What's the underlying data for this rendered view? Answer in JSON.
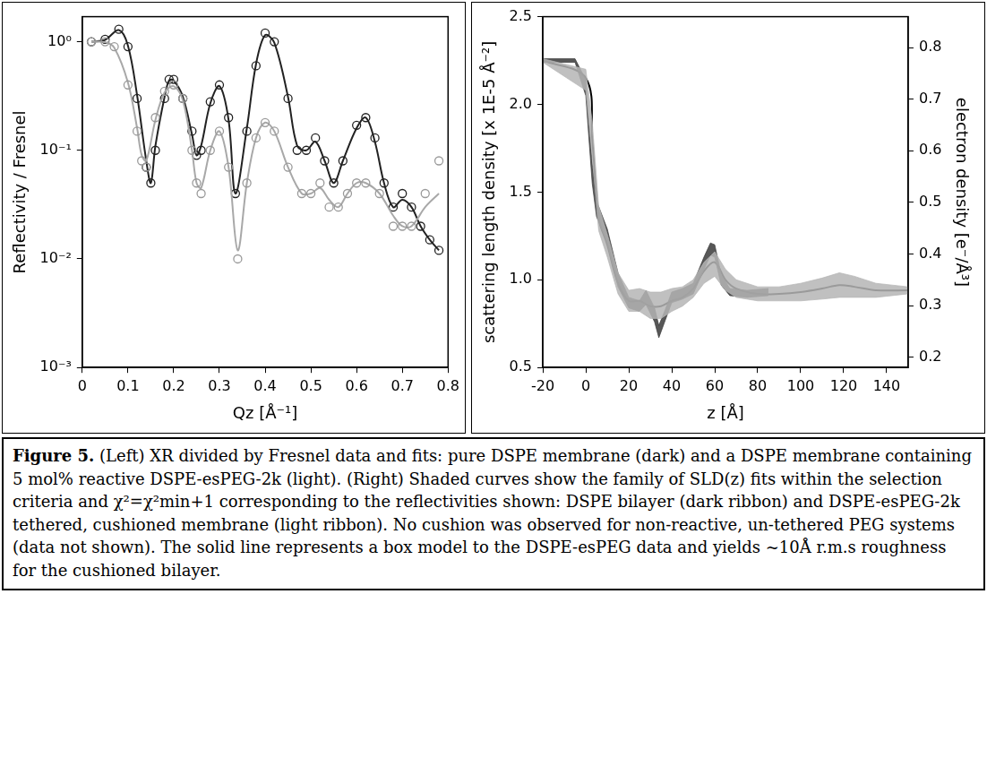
{
  "chart_data": [
    {
      "type": "scatter",
      "xlabel": "Qz [Å⁻¹]",
      "ylabel": "Reflectivity / Fresnel",
      "log": "y",
      "grid": false,
      "xlim": [
        0,
        0.8
      ],
      "xticks": [
        0,
        0.1,
        0.2,
        0.3,
        0.4,
        0.5,
        0.6,
        0.7,
        0.8
      ],
      "ylim": [
        0.001,
        1.7
      ],
      "yticks": [
        {
          "value": 0.001,
          "label": "10⁻³"
        },
        {
          "value": 0.01,
          "label": "10⁻²"
        },
        {
          "value": 0.1,
          "label": "10⁻¹"
        },
        {
          "value": 1,
          "label": "10⁰"
        }
      ],
      "series": [
        {
          "type": "scatter",
          "marker": "circle",
          "color": "#9a9a9a",
          "x": [
            0.02,
            0.05,
            0.07,
            0.1,
            0.12,
            0.13,
            0.14,
            0.16,
            0.18,
            0.2,
            0.22,
            0.24,
            0.25,
            0.26,
            0.28,
            0.3,
            0.32,
            0.34,
            0.36,
            0.38,
            0.4,
            0.42,
            0.45,
            0.48,
            0.5,
            0.52,
            0.54,
            0.56,
            0.58,
            0.6,
            0.62,
            0.65,
            0.68,
            0.7,
            0.72,
            0.75,
            0.78
          ],
          "values": [
            1.0,
            1.0,
            0.9,
            0.4,
            0.15,
            0.08,
            0.07,
            0.2,
            0.35,
            0.4,
            0.3,
            0.1,
            0.05,
            0.04,
            0.1,
            0.15,
            0.07,
            0.01,
            0.05,
            0.13,
            0.18,
            0.15,
            0.07,
            0.04,
            0.04,
            0.05,
            0.03,
            0.03,
            0.04,
            0.05,
            0.05,
            0.04,
            0.02,
            0.02,
            0.02,
            0.04,
            0.08
          ]
        },
        {
          "type": "line",
          "line_style": "solid",
          "color": "#a8a8a8",
          "x": [
            0.02,
            0.05,
            0.07,
            0.1,
            0.12,
            0.13,
            0.14,
            0.16,
            0.18,
            0.2,
            0.22,
            0.24,
            0.25,
            0.26,
            0.28,
            0.3,
            0.32,
            0.34,
            0.36,
            0.38,
            0.4,
            0.42,
            0.45,
            0.48,
            0.5,
            0.52,
            0.54,
            0.56,
            0.58,
            0.6,
            0.62,
            0.65,
            0.68,
            0.7,
            0.72,
            0.75,
            0.78
          ],
          "values": [
            1.0,
            0.99,
            0.88,
            0.42,
            0.16,
            0.09,
            0.08,
            0.19,
            0.34,
            0.39,
            0.29,
            0.1,
            0.05,
            0.045,
            0.1,
            0.15,
            0.07,
            0.012,
            0.05,
            0.13,
            0.18,
            0.15,
            0.07,
            0.04,
            0.04,
            0.045,
            0.035,
            0.03,
            0.04,
            0.05,
            0.05,
            0.04,
            0.025,
            0.02,
            0.02,
            0.03,
            0.04
          ]
        },
        {
          "type": "scatter",
          "marker": "circle",
          "color": "#222222",
          "x": [
            0.02,
            0.05,
            0.08,
            0.1,
            0.12,
            0.14,
            0.15,
            0.16,
            0.18,
            0.19,
            0.2,
            0.22,
            0.24,
            0.25,
            0.26,
            0.28,
            0.3,
            0.32,
            0.335,
            0.36,
            0.38,
            0.4,
            0.42,
            0.45,
            0.47,
            0.49,
            0.51,
            0.53,
            0.55,
            0.57,
            0.6,
            0.62,
            0.64,
            0.66,
            0.68,
            0.7,
            0.72,
            0.74,
            0.76,
            0.78
          ],
          "values": [
            1.0,
            1.05,
            1.3,
            0.9,
            0.3,
            0.07,
            0.05,
            0.1,
            0.3,
            0.45,
            0.45,
            0.3,
            0.15,
            0.09,
            0.1,
            0.28,
            0.4,
            0.2,
            0.04,
            0.15,
            0.6,
            1.2,
            1.0,
            0.3,
            0.1,
            0.1,
            0.13,
            0.08,
            0.05,
            0.08,
            0.17,
            0.2,
            0.13,
            0.05,
            0.03,
            0.04,
            0.03,
            0.02,
            0.015,
            0.012
          ]
        },
        {
          "type": "line",
          "line_style": "solid",
          "color": "#222222",
          "x": [
            0.02,
            0.05,
            0.08,
            0.1,
            0.12,
            0.14,
            0.15,
            0.16,
            0.18,
            0.19,
            0.2,
            0.22,
            0.24,
            0.25,
            0.26,
            0.28,
            0.3,
            0.32,
            0.335,
            0.36,
            0.38,
            0.4,
            0.42,
            0.45,
            0.47,
            0.49,
            0.51,
            0.53,
            0.55,
            0.57,
            0.6,
            0.62,
            0.64,
            0.66,
            0.68,
            0.7,
            0.72,
            0.74,
            0.76,
            0.78
          ],
          "values": [
            1.0,
            1.04,
            1.28,
            0.92,
            0.32,
            0.08,
            0.05,
            0.11,
            0.31,
            0.44,
            0.44,
            0.31,
            0.14,
            0.09,
            0.11,
            0.27,
            0.39,
            0.19,
            0.04,
            0.16,
            0.62,
            1.15,
            0.98,
            0.31,
            0.11,
            0.1,
            0.12,
            0.08,
            0.05,
            0.08,
            0.16,
            0.2,
            0.12,
            0.05,
            0.03,
            0.035,
            0.03,
            0.02,
            0.015,
            0.012
          ]
        }
      ]
    },
    {
      "type": "line",
      "xlabel": "z [Å]",
      "ylabel": "scattering length density [x 1E-5 Å⁻²]",
      "y2label": "electron density [e⁻/Å³]",
      "grid": false,
      "xlim": [
        -20,
        150
      ],
      "xticks": [
        -20,
        0,
        20,
        40,
        60,
        80,
        100,
        120,
        140
      ],
      "ylim": [
        0.5,
        2.5
      ],
      "yticks": [
        0.5,
        {
          "value": 1,
          "label": "1.0"
        },
        1.5,
        {
          "value": 2,
          "label": "2.0"
        },
        2.5
      ],
      "y2lim": [
        0.18,
        0.86
      ],
      "y2ticks": [
        0.2,
        0.3,
        0.4,
        0.5,
        0.6,
        0.7,
        0.8
      ],
      "series": [
        {
          "type": "band",
          "color": "#b5b5b5",
          "x": [
            -20,
            0,
            3,
            6,
            10,
            15,
            20,
            25,
            30,
            35,
            40,
            45,
            50,
            55,
            60,
            65,
            70,
            80,
            90,
            100,
            110,
            118,
            125,
            135,
            150
          ],
          "lower": [
            2.24,
            2.08,
            1.7,
            1.28,
            1.13,
            0.92,
            0.82,
            0.82,
            0.78,
            0.78,
            0.82,
            0.85,
            0.9,
            0.98,
            1.02,
            0.94,
            0.9,
            0.88,
            0.88,
            0.88,
            0.89,
            0.9,
            0.9,
            0.9,
            0.92
          ],
          "upper": [
            2.26,
            2.2,
            1.9,
            1.42,
            1.26,
            1.04,
            0.94,
            0.95,
            0.93,
            0.93,
            0.95,
            0.96,
            1.0,
            1.1,
            1.16,
            1.06,
            1.0,
            0.96,
            0.96,
            0.98,
            1.01,
            1.04,
            1.02,
            0.98,
            0.96
          ]
        },
        {
          "type": "band",
          "color": "#3a3a3a",
          "x": [
            -20,
            -5,
            0,
            3,
            5,
            10,
            15,
            20,
            25,
            28,
            32,
            34,
            37,
            40,
            45,
            50,
            55,
            58,
            60,
            63,
            67,
            75,
            85
          ],
          "lower": [
            2.24,
            2.24,
            2.05,
            1.55,
            1.36,
            1.21,
            0.96,
            0.84,
            0.82,
            0.86,
            0.76,
            0.67,
            0.77,
            0.87,
            0.89,
            0.92,
            1.06,
            1.14,
            1.13,
            0.97,
            0.91,
            0.9,
            0.91
          ],
          "upper": [
            2.26,
            2.26,
            2.14,
            1.66,
            1.45,
            1.29,
            1.04,
            0.9,
            0.88,
            0.94,
            0.84,
            0.74,
            0.83,
            0.93,
            0.95,
            0.98,
            1.13,
            1.21,
            1.2,
            1.03,
            0.95,
            0.94,
            0.95
          ]
        },
        {
          "type": "line",
          "line_style": "solid",
          "color": "#000000",
          "x": [
            -20,
            0,
            3,
            6,
            10,
            15,
            20,
            25,
            30,
            35,
            40,
            45,
            50,
            55,
            60,
            65,
            70,
            80,
            90,
            100,
            110,
            118,
            125,
            135,
            150
          ],
          "values": [
            2.25,
            2.15,
            1.8,
            1.35,
            1.2,
            0.98,
            0.88,
            0.88,
            0.85,
            0.85,
            0.88,
            0.9,
            0.95,
            1.05,
            1.1,
            1.0,
            0.95,
            0.92,
            0.92,
            0.93,
            0.95,
            0.97,
            0.96,
            0.94,
            0.94
          ]
        }
      ]
    }
  ],
  "caption": {
    "label": "Figure 5.",
    "text": "(Left) XR divided by Fresnel data and fits: pure DSPE membrane (dark) and a DSPE membrane containing 5 mol% reactive DSPE-esPEG-2k (light). (Right) Shaded curves show the family of SLD(z) fits within the selection criteria and χ²=χ²min+1 corresponding to the reflectivities shown:  DSPE bilayer (dark ribbon) and DSPE-esPEG-2k tethered, cushioned membrane (light ribbon). No cushion was observed for non-reactive, un-tethered PEG systems (data not shown). The solid line represents a box model to the DSPE-esPEG data and yields ~10Å r.m.s roughness for the cushioned bilayer."
  }
}
